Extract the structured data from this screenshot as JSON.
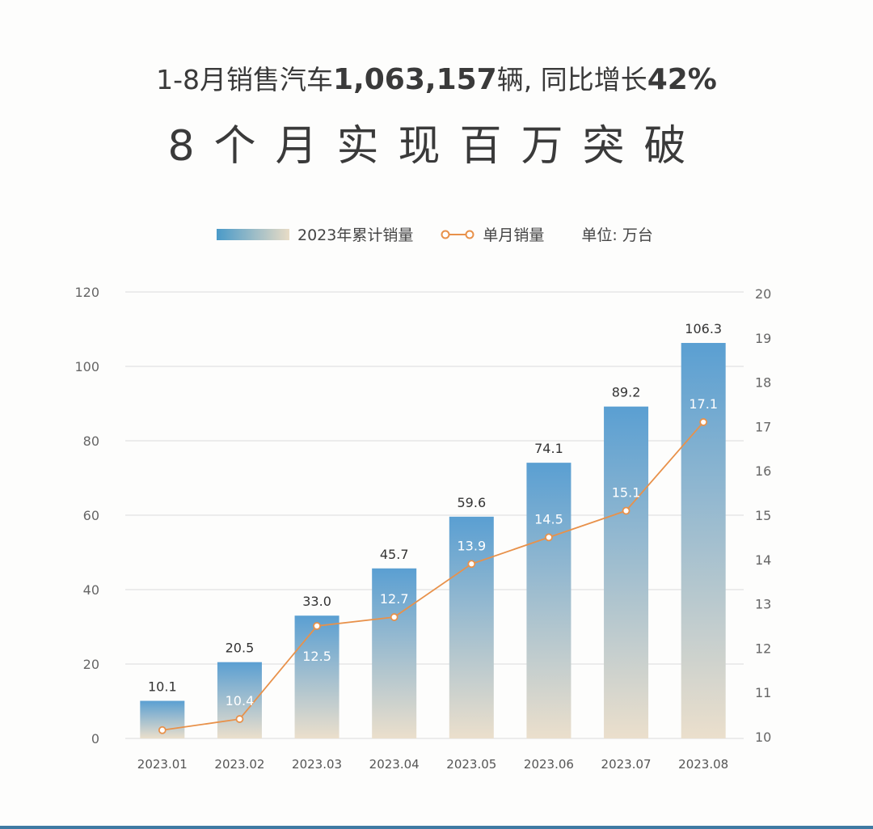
{
  "header": {
    "subtitle_prefix": "1-8月销售汽车",
    "subtitle_number": "1,063,157",
    "subtitle_mid": "辆, 同比增长",
    "subtitle_pct": "42%",
    "title": "8个月实现百万突破"
  },
  "legend": {
    "cumulative": "2023年累计销量",
    "monthly": "单月销量",
    "unit": "单位: 万台"
  },
  "colors": {
    "bar_top": "#5a9fd2",
    "bar_bottom": "#ebdfcc",
    "line": "#e8914a",
    "grid": "#dcdcdc"
  },
  "chart_data": {
    "type": "bar+line",
    "categories": [
      "2023.01",
      "2023.02",
      "2023.03",
      "2023.04",
      "2023.05",
      "2023.06",
      "2023.07",
      "2023.08"
    ],
    "series": [
      {
        "name": "2023年累计销量",
        "type": "bar",
        "axis": "left",
        "values": [
          10.1,
          20.5,
          33.0,
          45.7,
          59.6,
          74.1,
          89.2,
          106.3
        ],
        "labels": [
          "10.1",
          "20.5",
          "33.0",
          "45.7",
          "59.6",
          "74.1",
          "89.2",
          "106.3"
        ]
      },
      {
        "name": "单月销量",
        "type": "line",
        "axis": "right",
        "values": [
          10.15,
          10.4,
          12.5,
          12.7,
          13.9,
          14.5,
          15.1,
          17.1
        ],
        "labels": [
          "",
          "10.4",
          "12.5",
          "12.7",
          "13.9",
          "14.5",
          "15.1",
          "17.1"
        ]
      }
    ],
    "yleft": {
      "ticks": [
        "0",
        "20",
        "40",
        "60",
        "80",
        "100",
        "120"
      ],
      "lim": [
        0,
        120
      ]
    },
    "yright": {
      "ticks": [
        "10",
        "11",
        "12",
        "13",
        "14",
        "15",
        "16",
        "17",
        "18",
        "19",
        "20"
      ],
      "lim": [
        10,
        20
      ]
    },
    "grid": true,
    "legend_position": "top"
  }
}
